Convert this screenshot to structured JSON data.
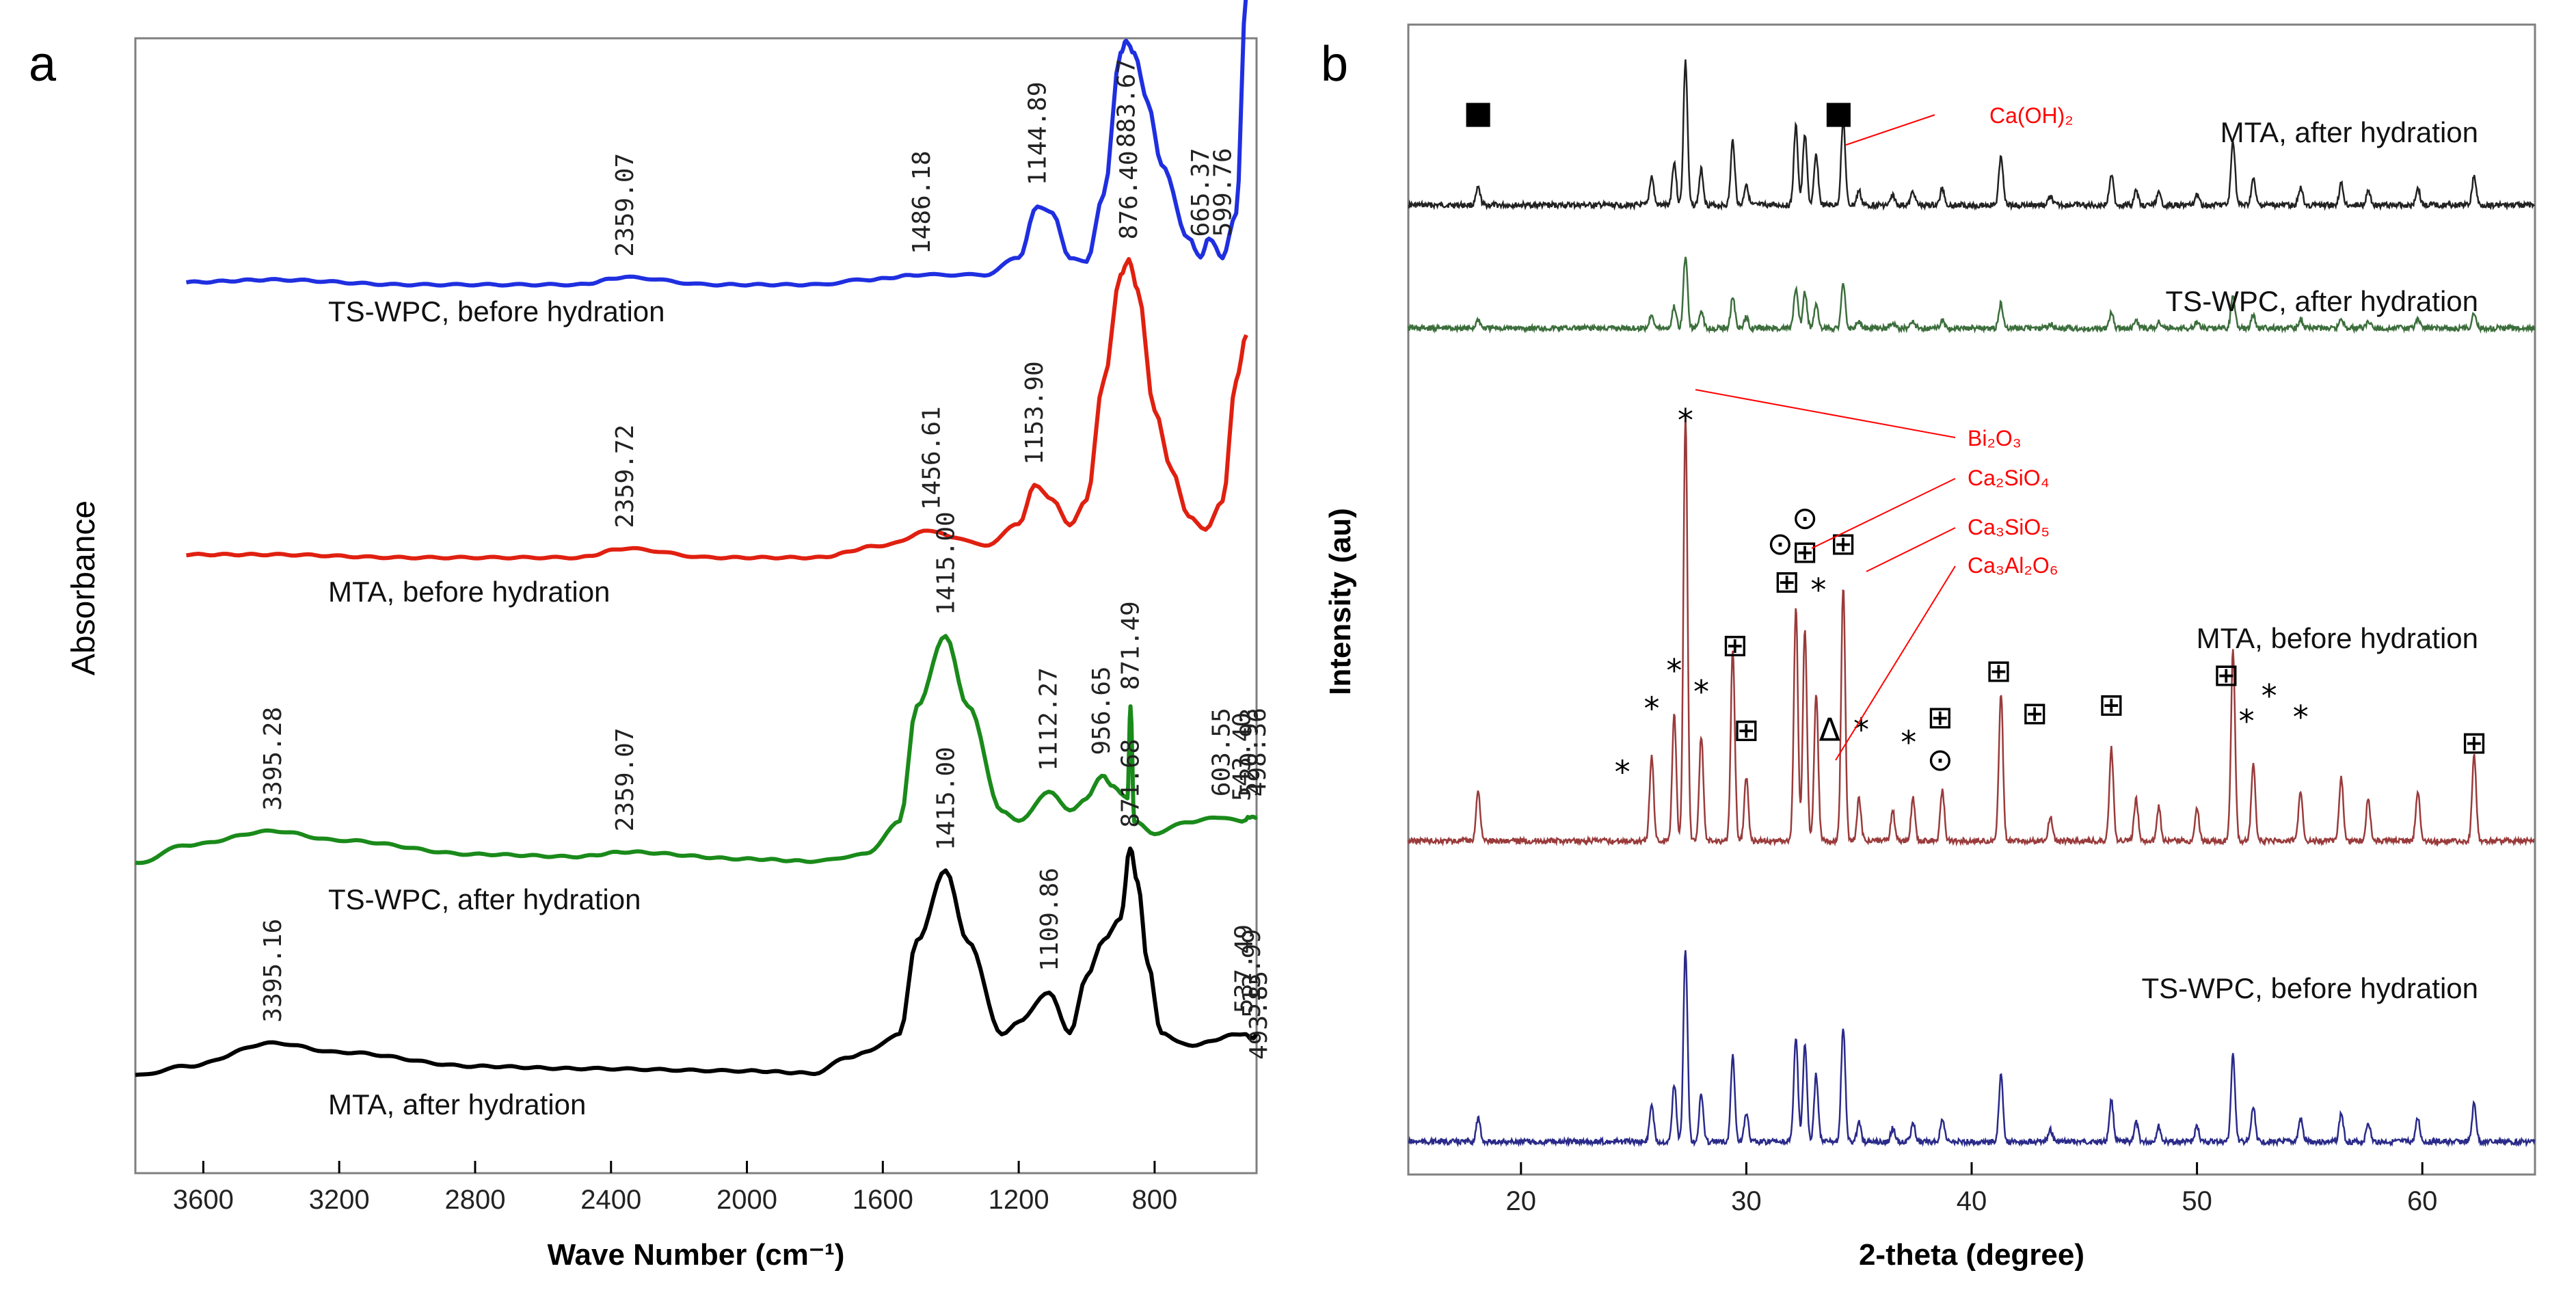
{
  "chart_data": [
    {
      "panel": "a",
      "type": "line",
      "xlabel": "Wave Number (cm⁻¹)",
      "ylabel": "Absorbance",
      "xlim": [
        3800,
        500
      ],
      "x_reversed": true,
      "xticks": [
        3600,
        3200,
        2800,
        2400,
        2000,
        1600,
        1200,
        800
      ],
      "xtick_labels": [
        "3600",
        "3200",
        "2800",
        "2400",
        "2000",
        "1600",
        "1200",
        "800"
      ],
      "series": [
        {
          "name": "TS-WPC, before hydration",
          "color": "#1f2fe0",
          "points": [
            [
              3650,
              0.02
            ],
            [
              3400,
              0.03
            ],
            [
              3000,
              0.01
            ],
            [
              2500,
              0.01
            ],
            [
              2359,
              0.04
            ],
            [
              2100,
              0.01
            ],
            [
              1800,
              0.01
            ],
            [
              1650,
              0.03
            ],
            [
              1486,
              0.05
            ],
            [
              1300,
              0.05
            ],
            [
              1200,
              0.12
            ],
            [
              1145,
              0.33
            ],
            [
              1100,
              0.3
            ],
            [
              1050,
              0.12
            ],
            [
              1000,
              0.1
            ],
            [
              950,
              0.38
            ],
            [
              900,
              0.95
            ],
            [
              884,
              1.0
            ],
            [
              860,
              0.95
            ],
            [
              820,
              0.75
            ],
            [
              780,
              0.5
            ],
            [
              700,
              0.2
            ],
            [
              665,
              0.12
            ],
            [
              640,
              0.2
            ],
            [
              600,
              0.12
            ],
            [
              560,
              0.3
            ],
            [
              530,
              1.2
            ]
          ],
          "peak_labels": [
            {
              "x": 2359.07,
              "label": "2359.07"
            },
            {
              "x": 1486.18,
              "label": "1486.18"
            },
            {
              "x": 1144.89,
              "label": "1144.89"
            },
            {
              "x": 883.67,
              "label": "883.67"
            },
            {
              "x": 665.37,
              "label": "665.37"
            },
            {
              "x": 599.76,
              "label": "599.76"
            }
          ]
        },
        {
          "name": "MTA, before hydration",
          "color": "#e02010",
          "points": [
            [
              3650,
              0.02
            ],
            [
              3400,
              0.02
            ],
            [
              3000,
              0.01
            ],
            [
              2500,
              0.01
            ],
            [
              2359,
              0.04
            ],
            [
              2100,
              0.01
            ],
            [
              1800,
              0.01
            ],
            [
              1600,
              0.05
            ],
            [
              1456,
              0.1
            ],
            [
              1400,
              0.08
            ],
            [
              1300,
              0.05
            ],
            [
              1200,
              0.12
            ],
            [
              1154,
              0.25
            ],
            [
              1100,
              0.2
            ],
            [
              1050,
              0.12
            ],
            [
              1000,
              0.2
            ],
            [
              950,
              0.6
            ],
            [
              900,
              0.95
            ],
            [
              876,
              1.0
            ],
            [
              850,
              0.9
            ],
            [
              800,
              0.5
            ],
            [
              750,
              0.3
            ],
            [
              700,
              0.15
            ],
            [
              650,
              0.1
            ],
            [
              600,
              0.2
            ],
            [
              560,
              0.6
            ],
            [
              530,
              0.75
            ]
          ],
          "peak_labels": [
            {
              "x": 2359.72,
              "label": "2359.72"
            },
            {
              "x": 1456.61,
              "label": "1456.61"
            },
            {
              "x": 1153.9,
              "label": "1153.90"
            },
            {
              "x": 876.4,
              "label": "876.40"
            }
          ]
        },
        {
          "name": "TS-WPC, after hydration",
          "color": "#1a8a1a",
          "points": [
            [
              3800,
              0.02
            ],
            [
              3650,
              0.1
            ],
            [
              3395,
              0.16
            ],
            [
              3200,
              0.12
            ],
            [
              2800,
              0.06
            ],
            [
              2500,
              0.05
            ],
            [
              2359,
              0.07
            ],
            [
              2000,
              0.04
            ],
            [
              1800,
              0.03
            ],
            [
              1650,
              0.06
            ],
            [
              1550,
              0.2
            ],
            [
              1500,
              0.7
            ],
            [
              1415,
              1.0
            ],
            [
              1350,
              0.7
            ],
            [
              1250,
              0.25
            ],
            [
              1200,
              0.2
            ],
            [
              1112,
              0.33
            ],
            [
              1050,
              0.25
            ],
            [
              1000,
              0.3
            ],
            [
              956,
              0.4
            ],
            [
              920,
              0.35
            ],
            [
              880,
              0.3
            ],
            [
              871,
              0.7
            ],
            [
              860,
              0.2
            ],
            [
              800,
              0.15
            ],
            [
              700,
              0.2
            ],
            [
              603,
              0.22
            ],
            [
              543,
              0.2
            ],
            [
              520,
              0.22
            ],
            [
              498,
              0.22
            ]
          ],
          "peak_labels": [
            {
              "x": 3395.28,
              "label": "3395.28"
            },
            {
              "x": 2359.07,
              "label": "2359.07"
            },
            {
              "x": 1415.0,
              "label": "1415.00"
            },
            {
              "x": 1112.27,
              "label": "1112.27"
            },
            {
              "x": 956.65,
              "label": "956.65"
            },
            {
              "x": 871.49,
              "label": "871.49"
            },
            {
              "x": 603.55,
              "label": "603.55"
            },
            {
              "x": 543.4,
              "label": "543.40"
            },
            {
              "x": 520.93,
              "label": "520.93"
            },
            {
              "x": 498.36,
              "label": "498.36"
            }
          ]
        },
        {
          "name": "MTA, after hydration",
          "color": "#000000",
          "points": [
            [
              3800,
              0.02
            ],
            [
              3650,
              0.06
            ],
            [
              3395,
              0.16
            ],
            [
              3200,
              0.12
            ],
            [
              2800,
              0.06
            ],
            [
              2500,
              0.05
            ],
            [
              2000,
              0.04
            ],
            [
              1800,
              0.03
            ],
            [
              1700,
              0.1
            ],
            [
              1650,
              0.12
            ],
            [
              1550,
              0.2
            ],
            [
              1500,
              0.6
            ],
            [
              1415,
              0.9
            ],
            [
              1350,
              0.6
            ],
            [
              1250,
              0.2
            ],
            [
              1200,
              0.25
            ],
            [
              1110,
              0.38
            ],
            [
              1050,
              0.2
            ],
            [
              1000,
              0.45
            ],
            [
              950,
              0.6
            ],
            [
              900,
              0.7
            ],
            [
              872,
              1.0
            ],
            [
              850,
              0.85
            ],
            [
              820,
              0.5
            ],
            [
              780,
              0.2
            ],
            [
              700,
              0.15
            ],
            [
              537,
              0.2
            ],
            [
              514,
              0.18
            ],
            [
              494,
              0.2
            ]
          ],
          "peak_labels": [
            {
              "x": 3395.16,
              "label": "3395.16"
            },
            {
              "x": 1415.0,
              "label": "1415.00"
            },
            {
              "x": 1109.86,
              "label": "1109.86"
            },
            {
              "x": 871.68,
              "label": "871.68"
            },
            {
              "x": 537.49,
              "label": "537.49"
            },
            {
              "x": 513.99,
              "label": "513.99"
            },
            {
              "x": 493.85,
              "label": "493.85"
            }
          ]
        }
      ]
    },
    {
      "panel": "b",
      "type": "line",
      "xlabel": "2-theta (degree)",
      "ylabel": "Intensity (au)",
      "xlim": [
        15,
        65
      ],
      "xticks": [
        20,
        30,
        40,
        50,
        60
      ],
      "xtick_labels": [
        "20",
        "30",
        "40",
        "50",
        "60"
      ],
      "series": [
        {
          "name": "MTA, after hydration",
          "color": "#222222",
          "peak_scale": 0.7,
          "markers": [
            {
              "symbol": "■",
              "x": 18.1
            },
            {
              "symbol": "■",
              "x": 34.1
            }
          ]
        },
        {
          "name": "TS-WPC, after hydration",
          "color": "#3c6e3c",
          "peak_scale": 0.35,
          "markers": []
        },
        {
          "name": "MTA, before hydration",
          "color": "#9a3b3b",
          "peak_scale": 1.0,
          "markers": [
            {
              "symbol": "*",
              "x": 27.3,
              "y": 0.95
            },
            {
              "symbol": "*",
              "x": 24.5,
              "y": 0.12
            },
            {
              "symbol": "*",
              "x": 25.8,
              "y": 0.27
            },
            {
              "symbol": "*",
              "x": 26.8,
              "y": 0.36
            },
            {
              "symbol": "*",
              "x": 28.0,
              "y": 0.31
            },
            {
              "symbol": "⊞",
              "x": 29.5,
              "y": 0.42
            },
            {
              "symbol": "⊞",
              "x": 30.0,
              "y": 0.22
            },
            {
              "symbol": "⊙",
              "x": 31.5,
              "y": 0.66
            },
            {
              "symbol": "⊞",
              "x": 31.8,
              "y": 0.57
            },
            {
              "symbol": "⊞",
              "x": 32.6,
              "y": 0.64
            },
            {
              "symbol": "⊙",
              "x": 32.6,
              "y": 0.72
            },
            {
              "symbol": "*",
              "x": 33.2,
              "y": 0.55
            },
            {
              "symbol": "⊞",
              "x": 34.3,
              "y": 0.66
            },
            {
              "symbol": "Δ",
              "x": 33.7,
              "y": 0.22
            },
            {
              "symbol": "*",
              "x": 35.1,
              "y": 0.22
            },
            {
              "symbol": "*",
              "x": 37.2,
              "y": 0.19
            },
            {
              "symbol": "⊞",
              "x": 38.6,
              "y": 0.25
            },
            {
              "symbol": "⊙",
              "x": 38.6,
              "y": 0.15
            },
            {
              "symbol": "⊞",
              "x": 41.2,
              "y": 0.36
            },
            {
              "symbol": "⊞",
              "x": 42.8,
              "y": 0.26
            },
            {
              "symbol": "⊞",
              "x": 46.2,
              "y": 0.28
            },
            {
              "symbol": "⊞",
              "x": 51.3,
              "y": 0.35
            },
            {
              "symbol": "*",
              "x": 52.2,
              "y": 0.24
            },
            {
              "symbol": "*",
              "x": 53.2,
              "y": 0.3
            },
            {
              "symbol": "*",
              "x": 54.6,
              "y": 0.25
            },
            {
              "symbol": "⊞",
              "x": 62.3,
              "y": 0.19
            }
          ]
        },
        {
          "name": "TS-WPC, before hydration",
          "color": "#2a2a8a",
          "peak_scale": 0.85,
          "markers": []
        }
      ],
      "peaks": [
        [
          18.1,
          0.12
        ],
        [
          25.8,
          0.2
        ],
        [
          26.8,
          0.3
        ],
        [
          27.3,
          1.0
        ],
        [
          28.0,
          0.25
        ],
        [
          29.4,
          0.45
        ],
        [
          30.0,
          0.15
        ],
        [
          32.2,
          0.55
        ],
        [
          32.6,
          0.5
        ],
        [
          33.1,
          0.35
        ],
        [
          34.3,
          0.6
        ],
        [
          35.0,
          0.1
        ],
        [
          36.5,
          0.07
        ],
        [
          37.4,
          0.1
        ],
        [
          38.7,
          0.12
        ],
        [
          41.3,
          0.35
        ],
        [
          43.5,
          0.06
        ],
        [
          46.2,
          0.22
        ],
        [
          47.3,
          0.1
        ],
        [
          48.3,
          0.08
        ],
        [
          50.0,
          0.08
        ],
        [
          51.6,
          0.45
        ],
        [
          52.5,
          0.18
        ],
        [
          54.6,
          0.12
        ],
        [
          56.4,
          0.15
        ],
        [
          57.6,
          0.1
        ],
        [
          59.8,
          0.12
        ],
        [
          62.3,
          0.2
        ]
      ],
      "legend_annotations": [
        {
          "symbol": "■",
          "compound": "Ca(OH)₂"
        },
        {
          "symbol": "*",
          "compound": "Bi₂O₃"
        },
        {
          "symbol": "⊙",
          "compound": "Ca₂SiO₄"
        },
        {
          "symbol": "⊞",
          "compound": "Ca₃SiO₅"
        },
        {
          "symbol": "Δ",
          "compound": "Ca₃Al₂O₆"
        }
      ]
    }
  ],
  "panel_letters": [
    "a",
    "b"
  ]
}
